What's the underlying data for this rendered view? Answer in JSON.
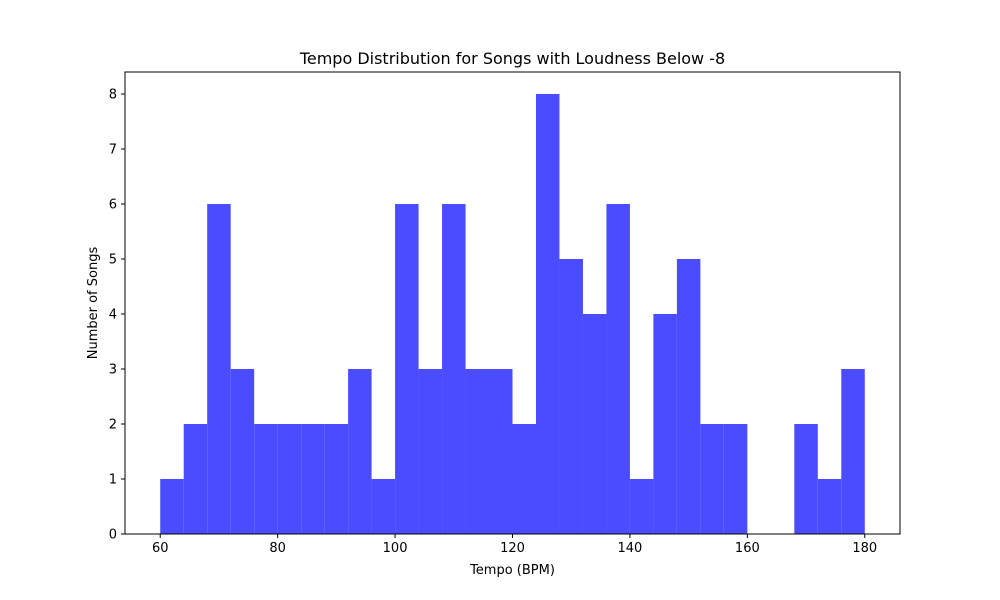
{
  "chart_data": {
    "type": "bar",
    "title": "Tempo Distribution for Songs with Loudness Below -8",
    "xlabel": "Tempo (BPM)",
    "ylabel": "Number of Songs",
    "bin_edges": [
      60,
      64,
      68,
      72,
      76,
      80,
      84,
      88,
      92,
      96,
      100,
      104,
      108,
      112,
      116,
      120,
      124,
      128,
      132,
      136,
      140,
      144,
      148,
      152,
      156,
      160,
      164,
      168,
      172,
      176,
      180
    ],
    "values": [
      1,
      2,
      6,
      3,
      2,
      2,
      2,
      2,
      3,
      1,
      6,
      3,
      6,
      3,
      3,
      2,
      8,
      5,
      4,
      6,
      1,
      4,
      5,
      2,
      2,
      0,
      0,
      2,
      1,
      3
    ],
    "xlim": [
      54,
      186
    ],
    "ylim": [
      0,
      8.4
    ],
    "xticks": [
      60,
      80,
      100,
      120,
      140,
      160,
      180
    ],
    "yticks": [
      0,
      1,
      2,
      3,
      4,
      5,
      6,
      7,
      8
    ],
    "grid": false,
    "color": "#4b4bff"
  }
}
